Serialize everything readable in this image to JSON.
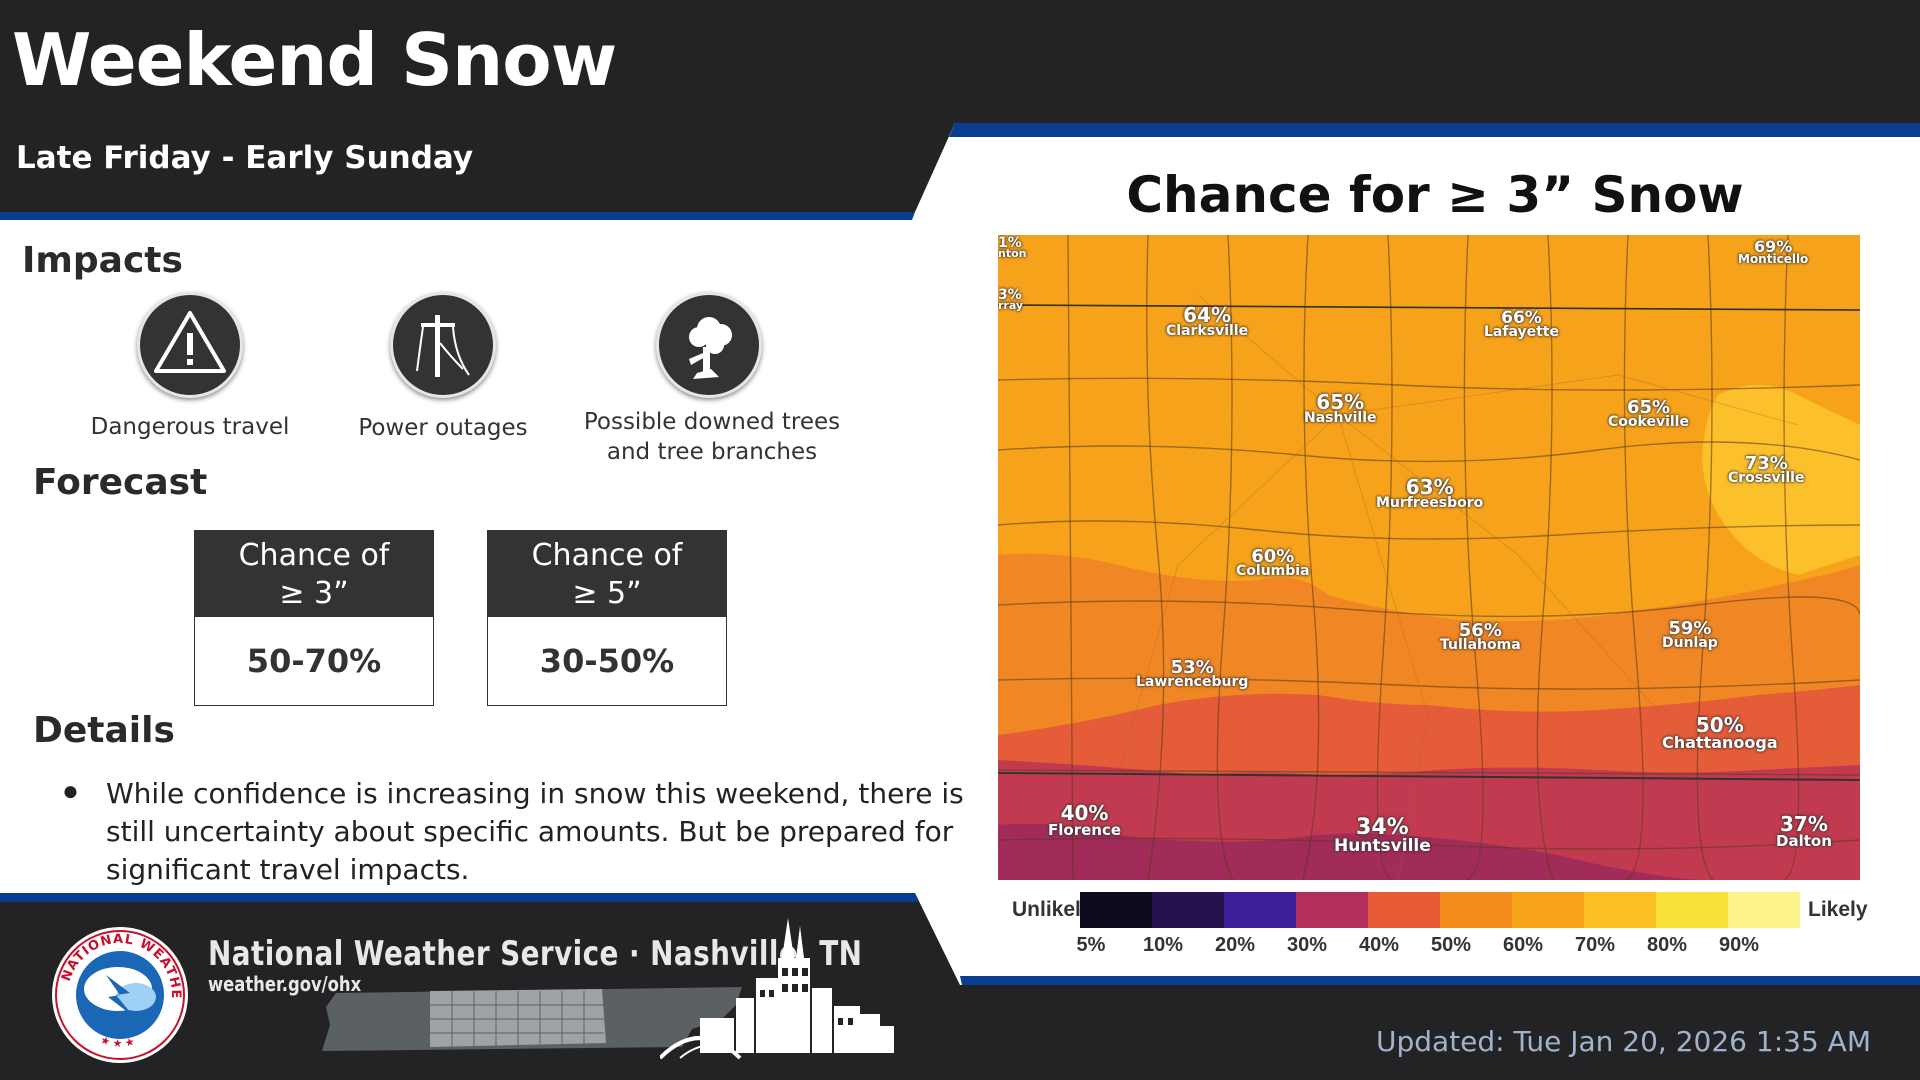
{
  "header": {
    "title": "Weekend Snow",
    "subtitle": "Late Friday - Early Sunday"
  },
  "impacts": {
    "heading": "Impacts",
    "items": [
      {
        "icon": "warning-triangle-icon",
        "label": "Dangerous travel"
      },
      {
        "icon": "power-line-icon",
        "label": "Power outages"
      },
      {
        "icon": "broken-tree-icon",
        "label_line1": "Possible downed trees",
        "label_line2": "and tree branches"
      }
    ]
  },
  "forecast": {
    "heading": "Forecast",
    "boxes": [
      {
        "head_line1": "Chance of",
        "head_line2": "≥ 3”",
        "value": "50-70%"
      },
      {
        "head_line1": "Chance of",
        "head_line2": "≥ 5”",
        "value": "30-50%"
      }
    ]
  },
  "details": {
    "heading": "Details",
    "bullet": "●",
    "text": "While confidence is increasing in snow this weekend, there is still uncertainty about specific amounts. But be prepared for significant travel impacts."
  },
  "map": {
    "title": "Chance for ≥ 3” Snow",
    "cities": [
      {
        "pct": "64%",
        "name": "Clarksville"
      },
      {
        "pct": "66%",
        "name": "Lafayette"
      },
      {
        "pct": "69%",
        "name": "Monticello"
      },
      {
        "pct": "65%",
        "name": "Nashville"
      },
      {
        "pct": "65%",
        "name": "Cookeville"
      },
      {
        "pct": "73%",
        "name": "Crossville"
      },
      {
        "pct": "63%",
        "name": "Murfreesboro"
      },
      {
        "pct": "60%",
        "name": "Columbia"
      },
      {
        "pct": "56%",
        "name": "Tullahoma"
      },
      {
        "pct": "59%",
        "name": "Dunlap"
      },
      {
        "pct": "53%",
        "name": "Lawrenceburg"
      },
      {
        "pct": "50%",
        "name": "Chattanooga"
      },
      {
        "pct": "40%",
        "name": "Florence"
      },
      {
        "pct": "34%",
        "name": "Huntsville"
      },
      {
        "pct": "37%",
        "name": "Dalton"
      },
      {
        "pct": "1%",
        "name": "nton"
      },
      {
        "pct": "3%",
        "name": "rray"
      }
    ],
    "legend": {
      "low_label": "Unlikely",
      "high_label": "Likely",
      "colors": [
        "#0e0a1e",
        "#25124f",
        "#3c1f99",
        "#b22e5c",
        "#e75a36",
        "#f28a1c",
        "#f7a418",
        "#fbbf25",
        "#f7e03a",
        "#fdf58c"
      ],
      "ticks": [
        "5%",
        "10%",
        "20%",
        "30%",
        "40%",
        "50%",
        "60%",
        "70%",
        "80%",
        "90%"
      ]
    }
  },
  "footer": {
    "org": "National Weather Service · Nashville, TN",
    "url": "weather.gov/ohx",
    "updated": "Updated: Tue Jan 20, 2026 1:35 AM"
  },
  "colors": {
    "dark_band": "#222224",
    "accent_blue": "#0a3d91"
  }
}
